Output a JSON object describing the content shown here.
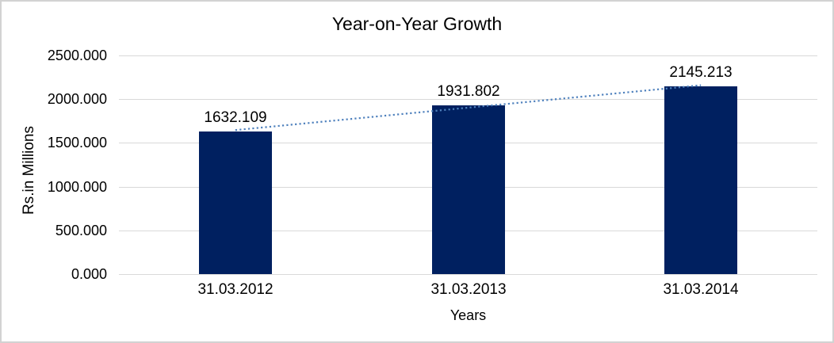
{
  "chart_data": {
    "type": "bar",
    "title": "Year-on-Year Growth",
    "xlabel": "Years",
    "ylabel": "Rs.in Millions",
    "categories": [
      "31.03.2012",
      "31.03.2013",
      "31.03.2014"
    ],
    "values": [
      1632.109,
      1931.802,
      2145.213
    ],
    "data_labels": [
      "1632.109",
      "1931.802",
      "2145.213"
    ],
    "ylim": [
      0,
      2500
    ],
    "yticks": [
      {
        "value": 0,
        "label": "0.000"
      },
      {
        "value": 500,
        "label": "500.000"
      },
      {
        "value": 1000,
        "label": "1000.000"
      },
      {
        "value": 1500,
        "label": "1500.000"
      },
      {
        "value": 2000,
        "label": "2000.000"
      },
      {
        "value": 2500,
        "label": "2500.000"
      }
    ],
    "grid": true,
    "legend": "none",
    "bar_color": "#002060",
    "gridline_color": "#d9d9d9",
    "trendline": {
      "type": "linear",
      "style": "dotted",
      "color": "#4f81bd"
    }
  }
}
